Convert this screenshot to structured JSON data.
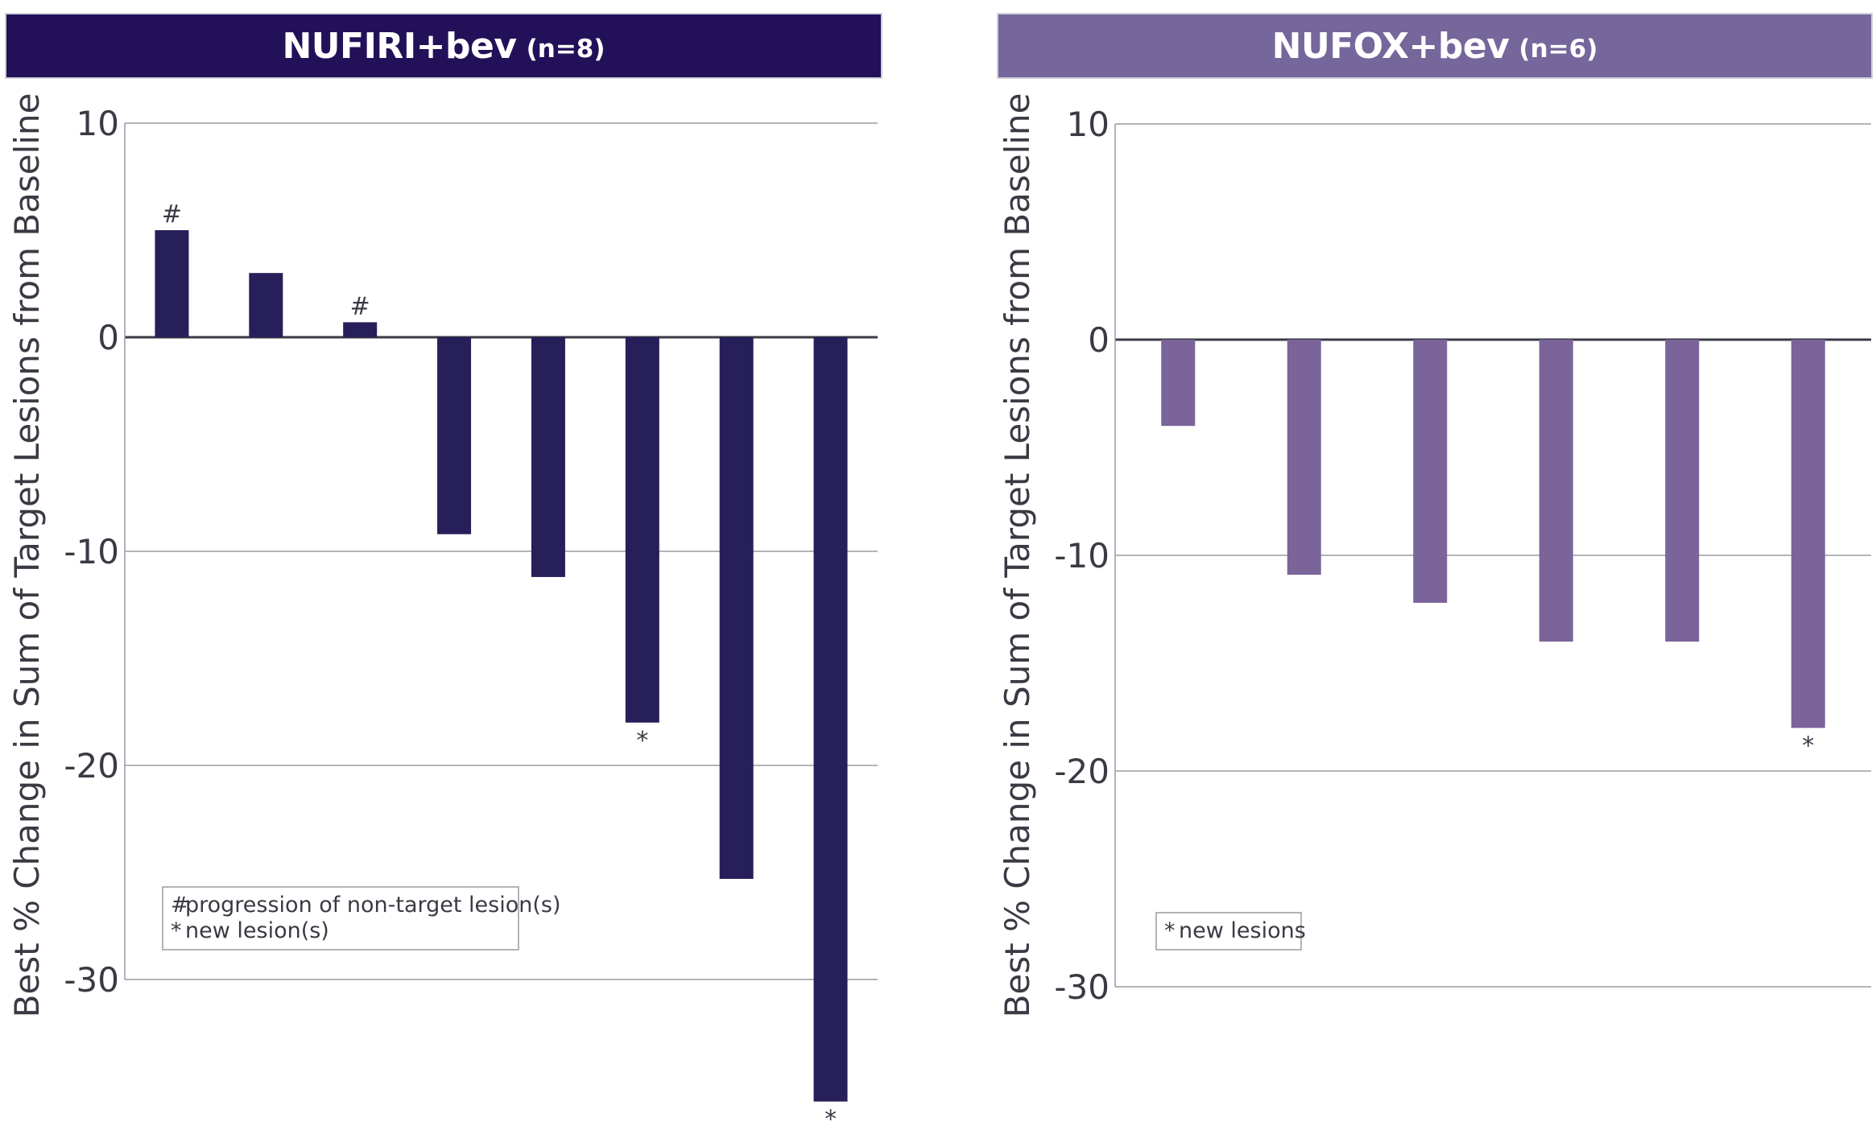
{
  "colors": {
    "panel_left": "#221159",
    "panel_right": "#75669b",
    "bar_left": "#271f5a",
    "bar_right": "#7a6499"
  },
  "chart_data": [
    {
      "type": "bar",
      "title": "NUFIRI+bev",
      "subtitle": "(n=8)",
      "ylabel": "Best % Change in Sum of Target Lesions from Baseline",
      "ylim": [
        -35,
        10
      ],
      "yticks": [
        10,
        0,
        -10,
        -20,
        -30
      ],
      "grid": true,
      "values": [
        5,
        3,
        0.7,
        -9.2,
        -11.2,
        -18,
        -25.3,
        -35.7
      ],
      "markers": [
        "#",
        "",
        "#",
        "",
        "",
        "*",
        "",
        "*"
      ],
      "legend": {
        "placement": "bottom-left",
        "entries": [
          {
            "symbol": "#",
            "label": "progression of non-target lesion(s)"
          },
          {
            "symbol": "*",
            "label": "new lesion(s)"
          }
        ]
      }
    },
    {
      "type": "bar",
      "title": "NUFOX+bev",
      "subtitle": "(n=6)",
      "ylabel": "Best % Change in Sum of Target Lesions from Baseline",
      "ylim": [
        -35,
        10
      ],
      "yticks": [
        10,
        0,
        -10,
        -20,
        -30
      ],
      "grid": true,
      "values": [
        -4,
        -10.9,
        -12.2,
        -14,
        -14,
        -18
      ],
      "markers": [
        "",
        "",
        "",
        "",
        "",
        "*"
      ],
      "legend": {
        "placement": "bottom-left",
        "entries": [
          {
            "symbol": "*",
            "label": "new lesions"
          }
        ]
      }
    }
  ]
}
